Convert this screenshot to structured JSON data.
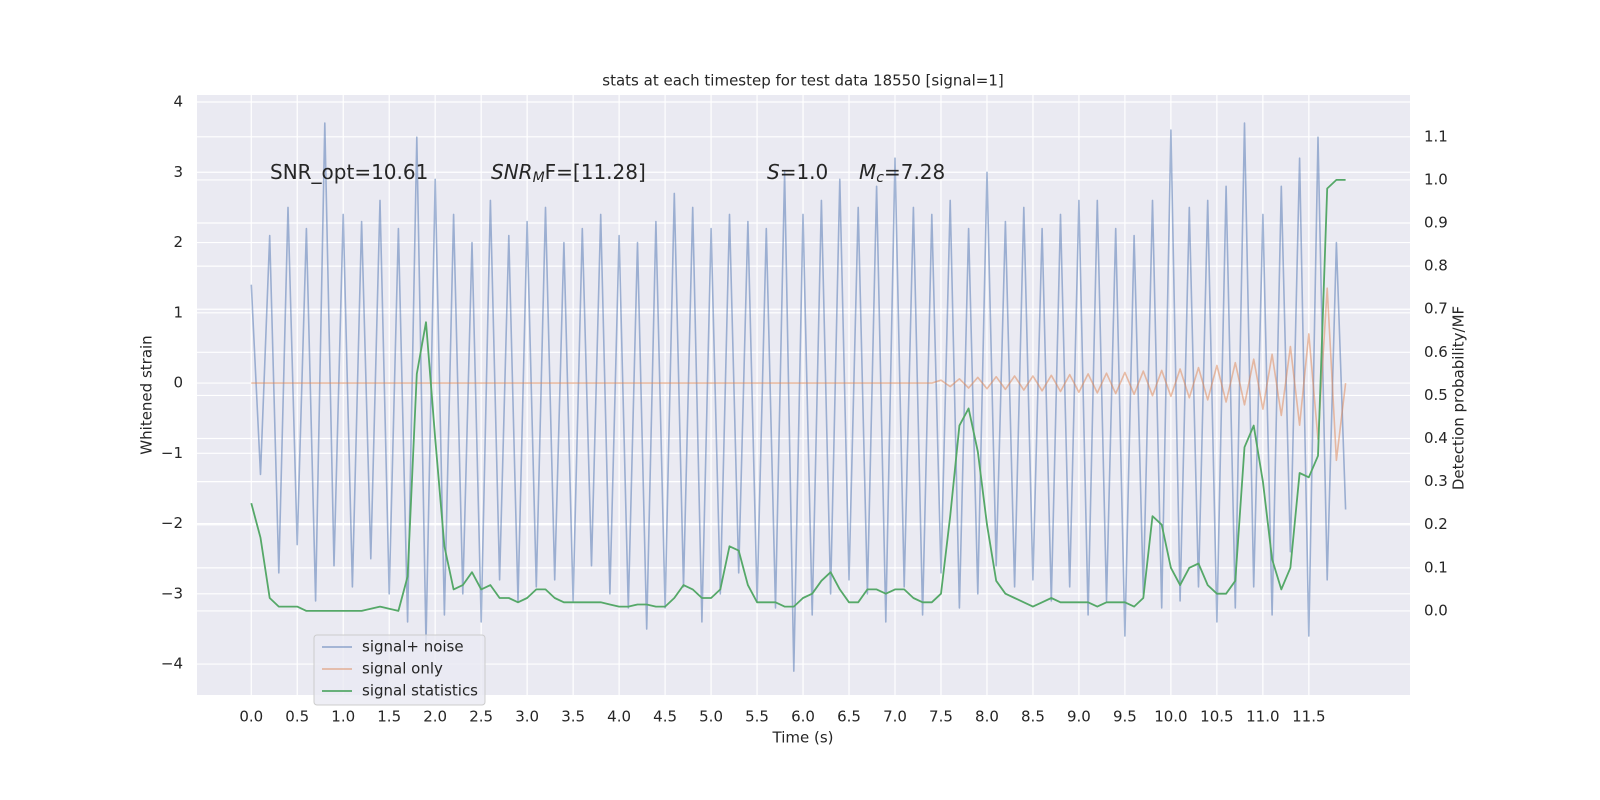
{
  "chart_data": {
    "type": "line",
    "title": "stats at each timestep for test data 18550 [signal=1]",
    "xlabel": "Time (s)",
    "ylabel": "Whitened strain",
    "y2label": "Detection probability/MF",
    "annotations": [
      {
        "base": "SNR_opt=10.61"
      },
      {
        "base": "SNR",
        "sub": "M",
        "tail": "F=[11.28]"
      },
      {
        "base": "S",
        "tail": "=1.0"
      },
      {
        "base": "M",
        "sub": "c",
        "tail": "=7.28"
      }
    ],
    "x": [
      0,
      0.1,
      0.2,
      0.3,
      0.4,
      0.5,
      0.6,
      0.7,
      0.8,
      0.9,
      1,
      1.1,
      1.2,
      1.3,
      1.4,
      1.5,
      1.6,
      1.7,
      1.8,
      1.9,
      2,
      2.1,
      2.2,
      2.3,
      2.4,
      2.5,
      2.6,
      2.7,
      2.8,
      2.9,
      3,
      3.1,
      3.2,
      3.3,
      3.4,
      3.5,
      3.6,
      3.7,
      3.8,
      3.9,
      4,
      4.1,
      4.2,
      4.3,
      4.4,
      4.5,
      4.6,
      4.7,
      4.8,
      4.9,
      5,
      5.1,
      5.2,
      5.3,
      5.4,
      5.5,
      5.6,
      5.7,
      5.8,
      5.9,
      6,
      6.1,
      6.2,
      6.3,
      6.4,
      6.5,
      6.6,
      6.7,
      6.8,
      6.9,
      7,
      7.1,
      7.2,
      7.3,
      7.4,
      7.5,
      7.6,
      7.7,
      7.8,
      7.9,
      8,
      8.1,
      8.2,
      8.3,
      8.4,
      8.5,
      8.6,
      8.7,
      8.8,
      8.9,
      9,
      9.1,
      9.2,
      9.3,
      9.4,
      9.5,
      9.6,
      9.7,
      9.8,
      9.9,
      10,
      10.1,
      10.2,
      10.3,
      10.4,
      10.5,
      10.6,
      10.7,
      10.8,
      10.9,
      11,
      11.1,
      11.2,
      11.3,
      11.4,
      11.5,
      11.6,
      11.7,
      11.8,
      11.9
    ],
    "series": [
      {
        "name": "signal+ noise",
        "color": "#4c72b0",
        "values": [
          1.4,
          -1.3,
          2.1,
          -2.7,
          2.5,
          -2.3,
          2.2,
          -3.1,
          3.7,
          -2.6,
          2.4,
          -2.9,
          2.3,
          -2.5,
          2.6,
          -3.0,
          2.2,
          -3.4,
          3.5,
          -3.7,
          2.9,
          -3.3,
          2.4,
          -3.0,
          2.0,
          -3.4,
          2.6,
          -2.8,
          2.1,
          -3.1,
          2.3,
          -2.9,
          2.5,
          -2.8,
          2.0,
          -3.1,
          2.2,
          -2.6,
          2.4,
          -3.0,
          2.1,
          -3.2,
          2.0,
          -3.5,
          2.3,
          -3.2,
          2.7,
          -2.9,
          2.5,
          -3.4,
          2.2,
          -3.0,
          2.4,
          -2.7,
          2.3,
          -3.1,
          2.2,
          -3.2,
          3.0,
          -4.1,
          2.4,
          -3.3,
          2.6,
          -3.0,
          2.9,
          -2.8,
          2.5,
          -3.0,
          2.8,
          -3.4,
          3.2,
          -2.9,
          2.5,
          -3.3,
          2.4,
          -2.7,
          2.6,
          -3.2,
          2.2,
          -3.0,
          3.0,
          -2.6,
          2.3,
          -2.9,
          2.5,
          -2.8,
          2.2,
          -3.1,
          2.4,
          -2.9,
          2.6,
          -3.3,
          2.6,
          -3.1,
          2.2,
          -3.6,
          2.1,
          -3.0,
          2.6,
          -3.2,
          3.6,
          -3.1,
          2.5,
          -2.9,
          2.6,
          -3.4,
          2.8,
          -3.2,
          3.7,
          -2.9,
          2.4,
          -3.3,
          2.8,
          -2.4,
          3.2,
          -3.6,
          3.5,
          -2.8,
          2.0,
          -1.8
        ]
      },
      {
        "name": "signal only",
        "color": "#dd8452",
        "values": [
          0,
          0,
          0,
          0,
          0,
          0,
          0,
          0,
          0,
          0,
          0,
          0,
          0,
          0,
          0,
          0,
          0,
          0,
          0,
          0,
          0,
          0,
          0,
          0,
          0,
          0,
          0,
          0,
          0,
          0,
          0,
          0,
          0,
          0,
          0,
          0,
          0,
          0,
          0,
          0,
          0,
          0,
          0,
          0,
          0,
          0,
          0,
          0,
          0,
          0,
          0,
          0,
          0,
          0,
          0,
          0,
          0,
          0,
          0,
          0,
          0,
          0,
          0,
          0,
          0,
          0,
          0,
          0,
          0,
          0,
          0,
          0,
          0,
          0,
          0,
          0.04,
          -0.05,
          0.06,
          -0.07,
          0.08,
          -0.08,
          0.09,
          -0.09,
          0.1,
          -0.1,
          0.1,
          -0.11,
          0.11,
          -0.12,
          0.12,
          -0.13,
          0.13,
          -0.14,
          0.14,
          -0.15,
          0.15,
          -0.16,
          0.17,
          -0.18,
          0.18,
          -0.19,
          0.2,
          -0.21,
          0.22,
          -0.24,
          0.25,
          -0.27,
          0.29,
          -0.31,
          0.34,
          -0.37,
          0.41,
          -0.46,
          0.52,
          -0.6,
          0.7,
          -0.8,
          1.35,
          -1.1,
          0
        ]
      },
      {
        "name": "signal statistics",
        "color": "#55a868",
        "axis": "y2",
        "values": [
          0.25,
          0.17,
          0.03,
          0.01,
          0.01,
          0.01,
          0,
          0,
          0,
          0,
          0,
          0,
          0,
          0.005,
          0.01,
          0.005,
          0,
          0.08,
          0.55,
          0.67,
          0.4,
          0.15,
          0.05,
          0.06,
          0.09,
          0.05,
          0.06,
          0.03,
          0.03,
          0.02,
          0.03,
          0.05,
          0.05,
          0.03,
          0.02,
          0.02,
          0.02,
          0.02,
          0.02,
          0.015,
          0.01,
          0.01,
          0.015,
          0.015,
          0.01,
          0.01,
          0.03,
          0.06,
          0.05,
          0.03,
          0.03,
          0.05,
          0.15,
          0.14,
          0.06,
          0.02,
          0.02,
          0.02,
          0.01,
          0.01,
          0.03,
          0.04,
          0.07,
          0.09,
          0.05,
          0.02,
          0.02,
          0.05,
          0.05,
          0.04,
          0.05,
          0.05,
          0.03,
          0.02,
          0.02,
          0.04,
          0.22,
          0.43,
          0.47,
          0.37,
          0.2,
          0.07,
          0.04,
          0.03,
          0.02,
          0.01,
          0.02,
          0.03,
          0.02,
          0.02,
          0.02,
          0.02,
          0.01,
          0.02,
          0.02,
          0.02,
          0.01,
          0.03,
          0.22,
          0.2,
          0.1,
          0.06,
          0.1,
          0.11,
          0.06,
          0.04,
          0.04,
          0.07,
          0.38,
          0.43,
          0.3,
          0.12,
          0.05,
          0.1,
          0.32,
          0.31,
          0.36,
          0.98,
          1.0,
          1.0
        ]
      }
    ],
    "xlim": [
      -0.59,
      12.6
    ],
    "xticks": [
      {
        "value": 0,
        "label": "0.0"
      },
      {
        "value": 0.5,
        "label": "0.5"
      },
      {
        "value": 1,
        "label": "1.0"
      },
      {
        "value": 1.5,
        "label": "1.5"
      },
      {
        "value": 2,
        "label": "2.0"
      },
      {
        "value": 2.5,
        "label": "2.5"
      },
      {
        "value": 3,
        "label": "3.0"
      },
      {
        "value": 3.5,
        "label": "3.5"
      },
      {
        "value": 4,
        "label": "4.0"
      },
      {
        "value": 4.5,
        "label": "4.5"
      },
      {
        "value": 5,
        "label": "5.0"
      },
      {
        "value": 5.5,
        "label": "5.5"
      },
      {
        "value": 6,
        "label": "6.0"
      },
      {
        "value": 6.5,
        "label": "6.5"
      },
      {
        "value": 7,
        "label": "7.0"
      },
      {
        "value": 7.5,
        "label": "7.5"
      },
      {
        "value": 8,
        "label": "8.0"
      },
      {
        "value": 8.5,
        "label": "8.5"
      },
      {
        "value": 9,
        "label": "9.0"
      },
      {
        "value": 9.5,
        "label": "9.5"
      },
      {
        "value": 10,
        "label": "10.0"
      },
      {
        "value": 10.5,
        "label": "10.5"
      },
      {
        "value": 11,
        "label": "11.0"
      },
      {
        "value": 11.5,
        "label": "11.5"
      }
    ],
    "ylim": [
      -4.44,
      4.1
    ],
    "yticks": [
      {
        "value": -4,
        "label": "−4"
      },
      {
        "value": -3,
        "label": "−3"
      },
      {
        "value": -2,
        "label": "−2"
      },
      {
        "value": -1,
        "label": "−1"
      },
      0,
      1,
      2,
      3,
      4
    ],
    "y2lim": [
      -0.195,
      1.197
    ],
    "y2ticks": [
      {
        "value": 0,
        "label": "0.0"
      },
      {
        "value": 0.1,
        "label": "0.1"
      },
      {
        "value": 0.2,
        "label": "0.2"
      },
      {
        "value": 0.3,
        "label": "0.3"
      },
      {
        "value": 0.4,
        "label": "0.4"
      },
      {
        "value": 0.5,
        "label": "0.5"
      },
      {
        "value": 0.6,
        "label": "0.6"
      },
      {
        "value": 0.7,
        "label": "0.7"
      },
      {
        "value": 0.8,
        "label": "0.8"
      },
      {
        "value": 0.9,
        "label": "0.9"
      },
      {
        "value": 1,
        "label": "1.0"
      },
      {
        "value": 1.1,
        "label": "1.1"
      }
    ],
    "grid": true,
    "legend": "lower left"
  }
}
